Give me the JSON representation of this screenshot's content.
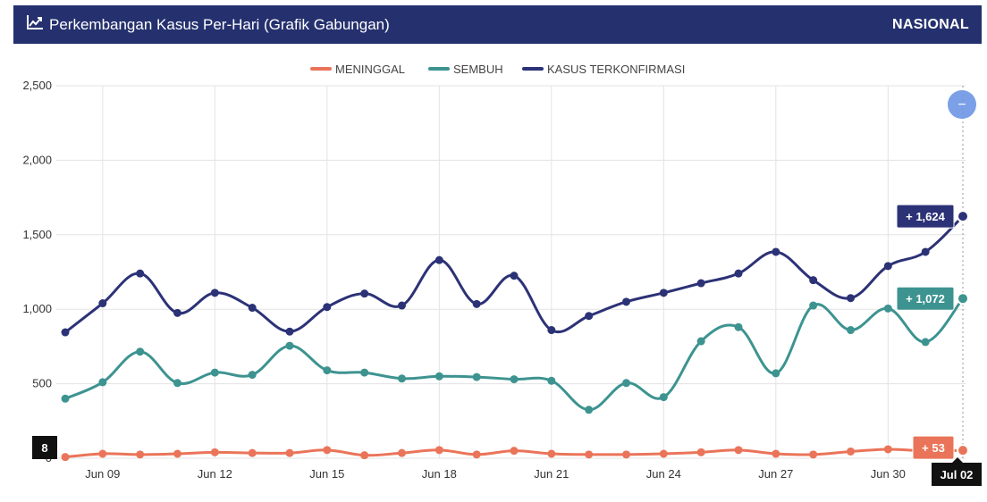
{
  "header": {
    "title": "Perkembangan Kasus Per-Hari (Grafik Gabungan)",
    "scope": "NASIONAL",
    "icon": "line-chart-icon"
  },
  "colors": {
    "header_bg": "#25306e",
    "meninggal": "#ea7459",
    "sembuh": "#3d9390",
    "terkonfirmasi": "#2c3276",
    "zoom_button": "#6d96e4"
  },
  "chart_data": {
    "type": "line",
    "ylim": [
      0,
      2500
    ],
    "yticks": [
      0,
      500,
      1000,
      1500,
      2000,
      2500
    ],
    "ytick_labels": [
      "0",
      "500",
      "1,000",
      "1,500",
      "2,000",
      "2,500"
    ],
    "x": [
      "Jun 08",
      "Jun 09",
      "Jun 10",
      "Jun 11",
      "Jun 12",
      "Jun 13",
      "Jun 14",
      "Jun 15",
      "Jun 16",
      "Jun 17",
      "Jun 18",
      "Jun 19",
      "Jun 20",
      "Jun 21",
      "Jun 22",
      "Jun 23",
      "Jun 24",
      "Jun 25",
      "Jun 26",
      "Jun 27",
      "Jun 28",
      "Jun 29",
      "Jun 30",
      "Jul 01",
      "Jul 02"
    ],
    "xtick_labels": [
      "Jun 09",
      "Jun 12",
      "Jun 15",
      "Jun 18",
      "Jun 21",
      "Jun 24",
      "Jun 27",
      "Jun 30"
    ],
    "grid": true,
    "legend_position": "top-center",
    "series": [
      {
        "name": "MENINGGAL",
        "key": "meninggal",
        "values": [
          8,
          30,
          25,
          30,
          40,
          35,
          35,
          55,
          20,
          35,
          55,
          25,
          50,
          30,
          25,
          25,
          30,
          40,
          55,
          30,
          25,
          45,
          60,
          50,
          53
        ]
      },
      {
        "name": "SEMBUH",
        "key": "sembuh",
        "values": [
          400,
          510,
          715,
          505,
          575,
          560,
          755,
          590,
          575,
          535,
          550,
          545,
          530,
          520,
          325,
          505,
          410,
          785,
          880,
          570,
          1025,
          860,
          1005,
          780,
          1072
        ]
      },
      {
        "name": "KASUS TERKONFIRMASI",
        "key": "terkonfirmasi",
        "values": [
          845,
          1040,
          1240,
          975,
          1110,
          1010,
          850,
          1015,
          1105,
          1025,
          1330,
          1035,
          1225,
          860,
          955,
          1050,
          1110,
          1175,
          1240,
          1385,
          1195,
          1075,
          1290,
          1385,
          1624
        ]
      }
    ],
    "tooltips": {
      "terkonfirmasi": "+ 1,624",
      "sembuh": "+ 1,072",
      "meninggal": "+ 53",
      "first_value": "8",
      "crosshair_date": "Jul 02"
    }
  },
  "zoom_button": {
    "symbol": "−"
  }
}
